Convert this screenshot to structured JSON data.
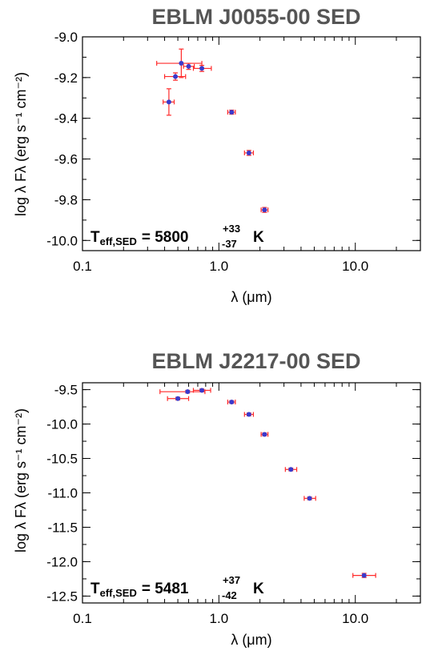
{
  "chart_data": [
    {
      "type": "scatter",
      "title": "EBLM J0055-00 SED",
      "xlabel": "λ (μm)",
      "ylabel": "log λ Fλ (erg s⁻¹ cm⁻²)",
      "xscale": "log",
      "xlim": [
        0.1,
        30
      ],
      "ylim": [
        -10.05,
        -9.0
      ],
      "xticks": [
        "0.1",
        "1.0",
        "10.0"
      ],
      "yticks": [
        "-9.0",
        "-9.2",
        "-9.4",
        "-9.6",
        "-9.8",
        "-10.0"
      ],
      "annotation": {
        "label": "T",
        "sub": "eff,SED",
        "value": "= 5800",
        "plus": "+33",
        "minus": "-37",
        "unit": "K"
      },
      "points": [
        {
          "x": 0.43,
          "xerr": [
            0.04,
            0.04
          ],
          "y": -9.32,
          "yerr": [
            0.065,
            0.065
          ]
        },
        {
          "x": 0.48,
          "xerr": [
            0.08,
            0.09
          ],
          "y": -9.195,
          "yerr": [
            0.018,
            0.018
          ]
        },
        {
          "x": 0.53,
          "xerr": [
            0.18,
            0.22
          ],
          "y": -9.13,
          "yerr": [
            0.07,
            0.07
          ]
        },
        {
          "x": 0.6,
          "xerr": [
            0.05,
            0.06
          ],
          "y": -9.145,
          "yerr": [
            0.015,
            0.015
          ]
        },
        {
          "x": 0.75,
          "xerr": [
            0.1,
            0.13
          ],
          "y": -9.155,
          "yerr": [
            0.015,
            0.015
          ]
        },
        {
          "x": 1.24,
          "xerr": [
            0.08,
            0.08
          ],
          "y": -9.37,
          "yerr": [
            0.01,
            0.01
          ]
        },
        {
          "x": 1.66,
          "xerr": [
            0.12,
            0.13
          ],
          "y": -9.57,
          "yerr": [
            0.012,
            0.012
          ]
        },
        {
          "x": 2.16,
          "xerr": [
            0.12,
            0.13
          ],
          "y": -9.85,
          "yerr": [
            0.012,
            0.012
          ]
        }
      ],
      "colors": {
        "point": "#3a3acc",
        "error": "#ff2a2a",
        "axis": "#000000"
      }
    },
    {
      "type": "scatter",
      "title": "EBLM J2217-00 SED",
      "xlabel": "λ (μm)",
      "ylabel": "log λ Fλ (erg s⁻¹ cm⁻²)",
      "xscale": "log",
      "xlim": [
        0.1,
        30
      ],
      "ylim": [
        -12.6,
        -9.4
      ],
      "xticks": [
        "0.1",
        "1.0",
        "10.0"
      ],
      "yticks": [
        "-9.5",
        "-10.0",
        "-10.5",
        "-11.0",
        "-11.5",
        "-12.0",
        "-12.5"
      ],
      "annotation": {
        "label": "T",
        "sub": "eff,SED",
        "value": "= 5481",
        "plus": "+37",
        "minus": "-42",
        "unit": "K"
      },
      "points": [
        {
          "x": 0.5,
          "xerr": [
            0.08,
            0.1
          ],
          "y": -9.63,
          "yerr": [
            0.02,
            0.02
          ]
        },
        {
          "x": 0.59,
          "xerr": [
            0.22,
            0.2
          ],
          "y": -9.53,
          "yerr": [
            0.02,
            0.02
          ]
        },
        {
          "x": 0.75,
          "xerr": [
            0.1,
            0.12
          ],
          "y": -9.51,
          "yerr": [
            0.02,
            0.02
          ]
        },
        {
          "x": 1.24,
          "xerr": [
            0.08,
            0.08
          ],
          "y": -9.68,
          "yerr": [
            0.02,
            0.02
          ]
        },
        {
          "x": 1.66,
          "xerr": [
            0.12,
            0.13
          ],
          "y": -9.86,
          "yerr": [
            0.02,
            0.02
          ]
        },
        {
          "x": 2.16,
          "xerr": [
            0.12,
            0.13
          ],
          "y": -10.15,
          "yerr": [
            0.02,
            0.02
          ]
        },
        {
          "x": 3.37,
          "xerr": [
            0.3,
            0.35
          ],
          "y": -10.66,
          "yerr": [
            0.02,
            0.02
          ]
        },
        {
          "x": 4.62,
          "xerr": [
            0.4,
            0.5
          ],
          "y": -11.08,
          "yerr": [
            0.02,
            0.02
          ]
        },
        {
          "x": 11.6,
          "xerr": [
            2.0,
            2.5
          ],
          "y": -12.2,
          "yerr": [
            0.03,
            0.03
          ]
        }
      ],
      "colors": {
        "point": "#3a3acc",
        "error": "#ff2a2a",
        "axis": "#000000"
      }
    }
  ]
}
